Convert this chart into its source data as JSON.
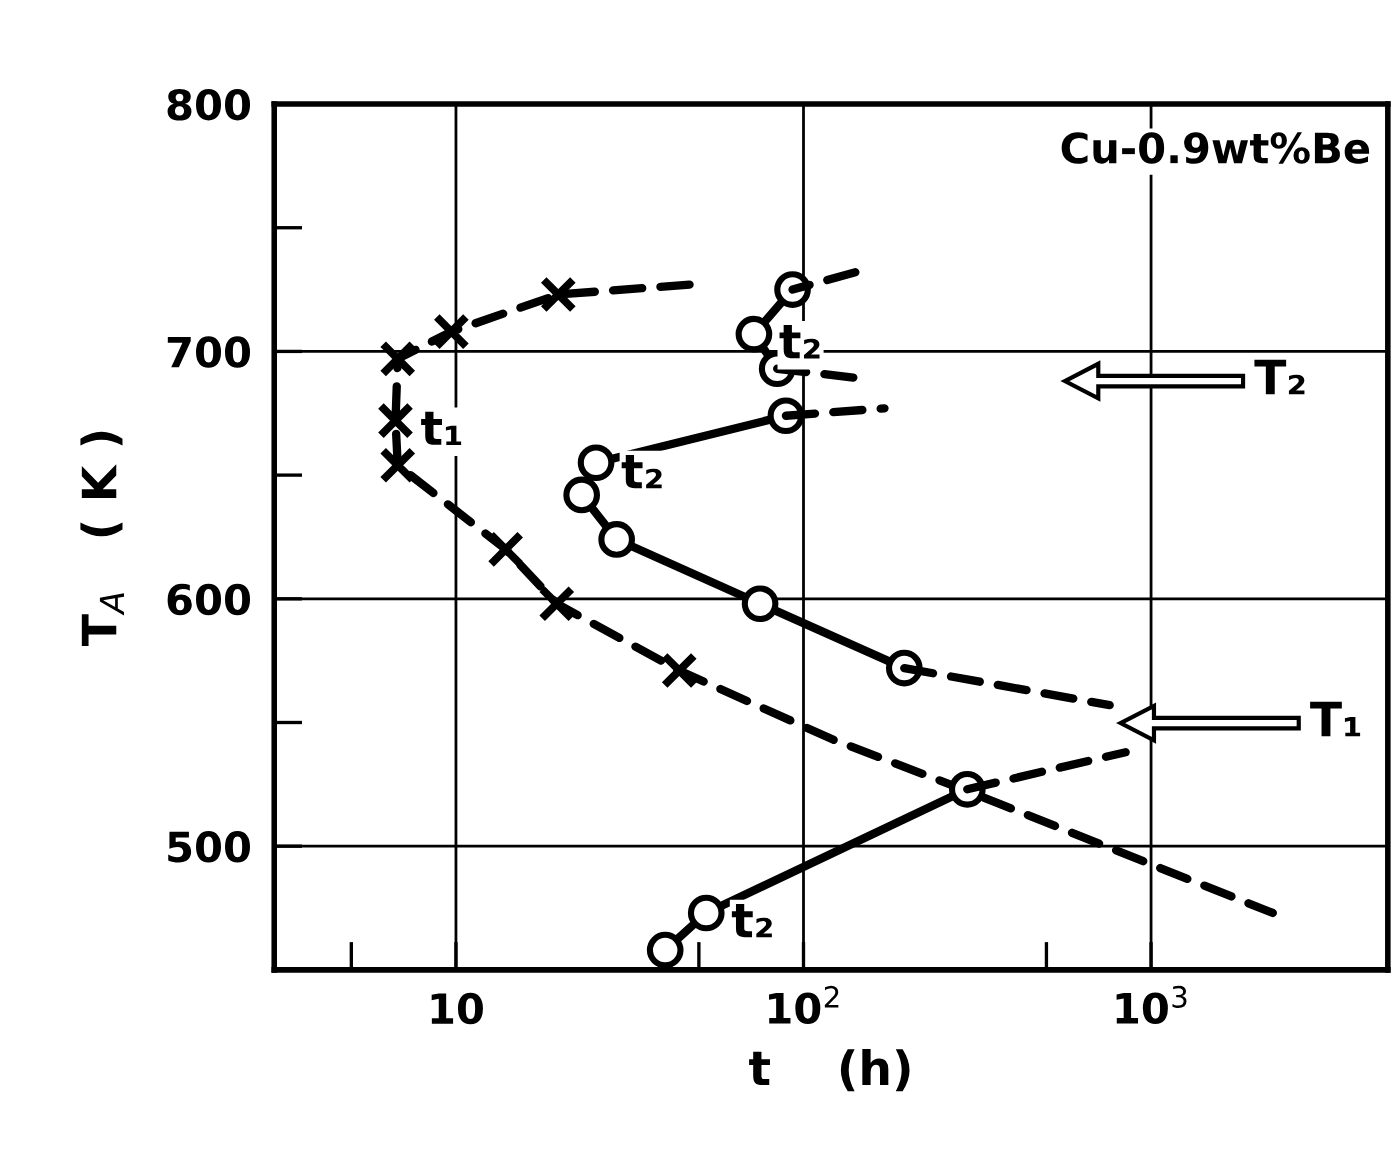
{
  "chart_data": {
    "type": "line",
    "xlabel": "t    (h)",
    "ylabel": "T$_{A}$   ( K )",
    "log": "x",
    "xlim": [
      3,
      4800
    ],
    "xticks": [
      {
        "value": 5,
        "label": null
      },
      {
        "value": 10,
        "label": "10"
      },
      {
        "value": 50,
        "label": null
      },
      {
        "value": 100,
        "label": "10$^{2}$"
      },
      {
        "value": 500,
        "label": null
      },
      {
        "value": 1000,
        "label": "10$^{3}$"
      }
    ],
    "ylim": [
      450,
      800
    ],
    "yticks": [
      {
        "value": 500,
        "label": "500"
      },
      {
        "value": 550,
        "label": null
      },
      {
        "value": 600,
        "label": "600"
      },
      {
        "value": 650,
        "label": null
      },
      {
        "value": 700,
        "label": "700"
      },
      {
        "value": 750,
        "label": null
      },
      {
        "value": 800,
        "label": "800"
      }
    ],
    "grid": true,
    "legend": false,
    "series": [
      {
        "line_style": "dashed",
        "marker": "none",
        "color": "#000000",
        "x": [
          47,
          19.7,
          9.7,
          6.8,
          6.7,
          6.8,
          13.9,
          19.5,
          43.9,
          122,
          300,
          2240
        ],
        "values": [
          727,
          723,
          708,
          697,
          672,
          654,
          620,
          598,
          571,
          543,
          522,
          473
        ]
      },
      {
        "type": "scatter",
        "marker": "cross",
        "color": "#000000",
        "x": [
          19.7,
          9.7,
          6.8,
          6.7,
          6.8,
          13.9,
          19.5,
          43.9
        ],
        "values": [
          723,
          708,
          697,
          672,
          654,
          620,
          598,
          571
        ]
      },
      {
        "line_style": "solid",
        "marker": "circle",
        "color": "#000000",
        "x": [
          89,
          25.3,
          23.0,
          29,
          75,
          195
        ],
        "values": [
          674,
          655,
          642,
          624,
          598,
          572
        ]
      },
      {
        "line_style": "dashed",
        "marker": "none",
        "color": "#000000",
        "x": [
          89,
          171
        ],
        "values": [
          674,
          677
        ]
      },
      {
        "line_style": "dashed",
        "marker": "none",
        "color": "#000000",
        "x": [
          195,
          760
        ],
        "values": [
          572,
          557
        ]
      },
      {
        "line_style": "solid",
        "marker": "circle",
        "color": "#000000",
        "x": [
          40,
          52.5,
          296
        ],
        "values": [
          458,
          473,
          523
        ]
      },
      {
        "line_style": "dashed",
        "marker": "none",
        "color": "#000000",
        "x": [
          296,
          845
        ],
        "values": [
          523,
          538
        ]
      },
      {
        "line_style": "solid",
        "marker": "circle",
        "color": "#000000",
        "x": [
          93,
          72,
          84
        ],
        "values": [
          725,
          707,
          693
        ]
      },
      {
        "line_style": "dashed",
        "marker": "none",
        "color": "#000000",
        "x": [
          141,
          93
        ],
        "values": [
          732,
          725
        ]
      },
      {
        "line_style": "dashed",
        "marker": "none",
        "color": "#000000",
        "x": [
          84,
          148
        ],
        "values": [
          693,
          689
        ]
      }
    ],
    "annotations": [
      "Cu-0.9wt%Be",
      {
        "text": "t₁",
        "x": 6.7,
        "y": 672
      },
      {
        "text": "t₂",
        "x": 25.3,
        "y": 654.5
      },
      {
        "text": "t₂",
        "x": 72,
        "y": 707
      },
      {
        "text": "t₂",
        "x": 52.5,
        "y": 473
      },
      "T₂",
      "T₁"
    ]
  }
}
